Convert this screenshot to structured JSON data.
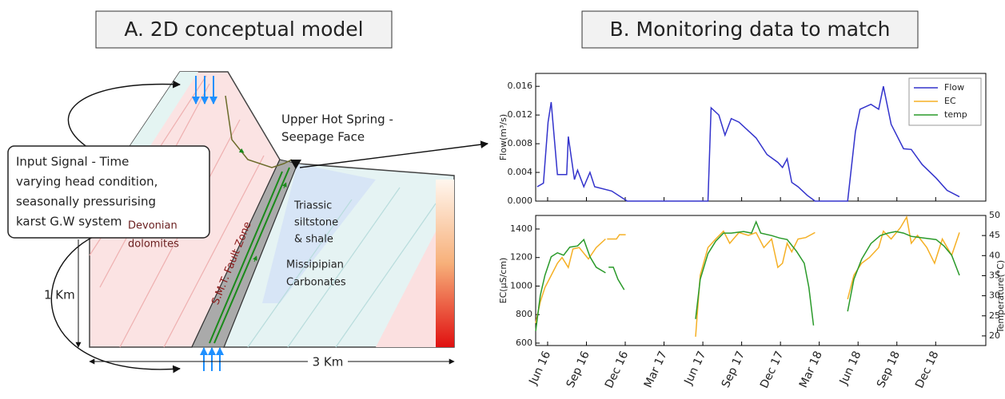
{
  "panel_a": {
    "title": "A. 2D conceptual model",
    "input_signal": [
      "Input Signal - Time",
      "varying head condition,",
      "seasonally pressurising",
      "karst G.W system"
    ],
    "spring_label": [
      "Upper Hot Spring -",
      "Seepage Face"
    ],
    "triassic": [
      "Triassic",
      "siltstone",
      "& shale"
    ],
    "devonian": [
      "Devonian",
      "dolomites"
    ],
    "missipipian": [
      "Missipipian",
      "Carbonates"
    ],
    "fault_label": "S.M.T. Fault Zone",
    "height_label": "1 Km",
    "width_label": "3 Km"
  },
  "panel_b_title": "B. Monitoring data to match",
  "chart_data": [
    {
      "type": "line",
      "ylabel": "Flow(m³/s)",
      "legend": "upper right",
      "xlim": [
        2016.34,
        2019.24
      ],
      "xticks": [
        2016.417,
        2016.667,
        2016.917,
        2017.167,
        2017.417,
        2017.667,
        2017.917,
        2018.167,
        2018.417,
        2018.667,
        2018.917
      ],
      "ylim": [
        0,
        0.0178
      ],
      "yticks": [
        {
          "value": 0,
          "label": "0.000"
        },
        {
          "value": 0.004,
          "label": "0.004"
        },
        {
          "value": 0.008,
          "label": "0.008"
        },
        {
          "value": 0.012,
          "label": "0.012"
        },
        {
          "value": 0.016,
          "label": "0.016"
        }
      ],
      "series": [
        {
          "name": "Flow",
          "color": "#3333cc",
          "x": [
            2016.35,
            2016.39,
            2016.42,
            2016.44,
            2016.48,
            2016.54,
            2016.55,
            2016.59,
            2016.61,
            2016.65,
            2016.69,
            2016.72,
            2016.83,
            2016.93,
            2017.45,
            2017.47,
            2017.52,
            2017.56,
            2017.6,
            2017.65,
            2017.76,
            2017.83,
            2017.9,
            2017.93,
            2017.96,
            2017.99,
            2018.03,
            2018.09,
            2018.14,
            2018.35,
            2018.4,
            2018.43,
            2018.5,
            2018.55,
            2018.58,
            2018.63,
            2018.71,
            2018.76,
            2018.83,
            2018.92,
            2018.99,
            2019.07
          ],
          "values": [
            0.002,
            0.0025,
            0.011,
            0.0138,
            0.0037,
            0.0037,
            0.009,
            0.003,
            0.0043,
            0.002,
            0.004,
            0.002,
            0.0014,
            0,
            0,
            0.013,
            0.012,
            0.0092,
            0.0115,
            0.011,
            0.0088,
            0.0065,
            0.0054,
            0.0047,
            0.0059,
            0.0026,
            0.002,
            0.0008,
            0,
            0,
            0.0097,
            0.0128,
            0.0135,
            0.0128,
            0.016,
            0.0107,
            0.0073,
            0.0072,
            0.0051,
            0.0032,
            0.0015,
            0.0006
          ]
        }
      ]
    },
    {
      "type": "line",
      "ylabel": "EC(µS/cm)",
      "y2label": "Temperature(°C)",
      "xlim": [
        2016.34,
        2019.24
      ],
      "xticks": [
        {
          "value": 2016.417,
          "label": "Jun 16"
        },
        {
          "value": 2016.667,
          "label": "Sep 16"
        },
        {
          "value": 2016.917,
          "label": "Dec 16"
        },
        {
          "value": 2017.167,
          "label": "Mar 17"
        },
        {
          "value": 2017.417,
          "label": "Jun 17"
        },
        {
          "value": 2017.667,
          "label": "Sep 17"
        },
        {
          "value": 2017.917,
          "label": "Dec 17"
        },
        {
          "value": 2018.167,
          "label": "Mar 18"
        },
        {
          "value": 2018.417,
          "label": "Jun 18"
        },
        {
          "value": 2018.667,
          "label": "Sep 18"
        },
        {
          "value": 2018.917,
          "label": "Dec 18"
        }
      ],
      "ylim": [
        583,
        1495
      ],
      "yticks": [
        600,
        800,
        1000,
        1200,
        1400
      ],
      "y2lim": [
        17.6,
        50
      ],
      "y2ticks": [
        20,
        25,
        30,
        35,
        40,
        45,
        50
      ],
      "series": [
        {
          "name": "EC",
          "color": "#f5b025",
          "x": [
            2016.34,
            2016.37,
            2016.4,
            2016.44,
            2016.48,
            2016.51,
            2016.55,
            2016.58,
            2016.62,
            2016.68,
            2016.73,
            2016.79,
            null,
            2016.8,
            2016.86,
            2016.88,
            2016.92,
            null,
            2017.37,
            2017.4,
            2017.45,
            2017.5,
            2017.55,
            2017.59,
            2017.65,
            2017.71,
            2017.76,
            2017.81,
            2017.86,
            2017.9,
            2017.93,
            2017.96,
            2017.99,
            2018.03,
            2018.08,
            2018.14,
            null,
            2018.35,
            2018.39,
            2018.44,
            2018.49,
            2018.55,
            2018.58,
            2018.63,
            2018.69,
            2018.73,
            2018.76,
            2018.8,
            2018.86,
            2018.91,
            2018.96,
            2019.02,
            2019.07
          ],
          "values": [
            740,
            890,
            990,
            1075,
            1160,
            1200,
            1130,
            1260,
            1270,
            1190,
            1270,
            1330,
            null,
            1330,
            1330,
            1360,
            1360,
            null,
            645,
            1076,
            1270,
            1330,
            1385,
            1300,
            1375,
            1355,
            1375,
            1270,
            1330,
            1131,
            1160,
            1300,
            1240,
            1330,
            1340,
            1375,
            null,
            908,
            1076,
            1160,
            1200,
            1270,
            1385,
            1330,
            1410,
            1484,
            1300,
            1355,
            1270,
            1160,
            1330,
            1215,
            1375
          ]
        },
        {
          "name": "temp",
          "color": "#2a9a2a",
          "axis": "y2",
          "x": [
            2016.34,
            2016.37,
            2016.4,
            2016.44,
            2016.48,
            2016.52,
            2016.56,
            2016.61,
            2016.65,
            2016.69,
            2016.73,
            2016.79,
            null,
            2016.81,
            2016.84,
            2016.87,
            2016.91,
            null,
            2017.37,
            2017.4,
            2017.45,
            2017.5,
            2017.55,
            2017.6,
            2017.68,
            2017.73,
            2017.76,
            2017.79,
            2017.86,
            2017.91,
            2017.96,
            2018.02,
            2018.07,
            2018.1,
            2018.13,
            null,
            2018.35,
            2018.39,
            2018.44,
            2018.5,
            2018.56,
            2018.61,
            2018.66,
            2018.71,
            2018.76,
            2018.84,
            2018.92,
            2018.97,
            2019.02,
            2019.07
          ],
          "values": [
            21.2,
            30.1,
            35.1,
            39.7,
            40.7,
            40.1,
            42.1,
            42.4,
            44.0,
            39.7,
            37.1,
            35.7,
            null,
            37.1,
            37.1,
            34.1,
            31.5,
            null,
            24.2,
            34.1,
            40.5,
            43.6,
            45.6,
            45.6,
            46.0,
            45.6,
            48.4,
            45.6,
            45.0,
            44.4,
            44.0,
            41.1,
            38.1,
            32.1,
            22.6,
            null,
            26.1,
            34.1,
            39.1,
            43.0,
            45.0,
            45.6,
            46.0,
            45.6,
            44.8,
            44.4,
            44.0,
            42.4,
            40.1,
            35.1
          ]
        }
      ]
    }
  ]
}
